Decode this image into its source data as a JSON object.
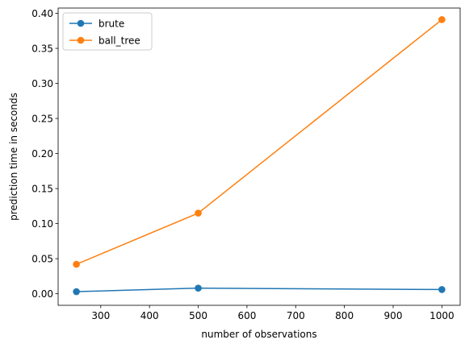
{
  "chart_data": {
    "type": "line",
    "title": "",
    "xlabel": "number of observations",
    "ylabel": "prediction time in seconds",
    "xlim": [
      212.5,
      1037.5
    ],
    "ylim": [
      -0.0165,
      0.4075
    ],
    "xticks": [
      300,
      400,
      500,
      600,
      700,
      800,
      900,
      1000
    ],
    "yticks": [
      0.0,
      0.05,
      0.1,
      0.15,
      0.2,
      0.25,
      0.3,
      0.35,
      0.4
    ],
    "xtick_labels": [
      "300",
      "400",
      "500",
      "600",
      "700",
      "800",
      "900",
      "1000"
    ],
    "ytick_labels": [
      "0.00",
      "0.05",
      "0.10",
      "0.15",
      "0.20",
      "0.25",
      "0.30",
      "0.35",
      "0.40"
    ],
    "x": [
      250,
      500,
      1000
    ],
    "series": [
      {
        "name": "brute",
        "color": "#1f77b4",
        "values": [
          0.003,
          0.008,
          0.006
        ]
      },
      {
        "name": "ball_tree",
        "color": "#ff7f0e",
        "values": [
          0.042,
          0.115,
          0.391
        ]
      }
    ],
    "grid": false,
    "legend_position": "top-left",
    "marker": "circle"
  }
}
